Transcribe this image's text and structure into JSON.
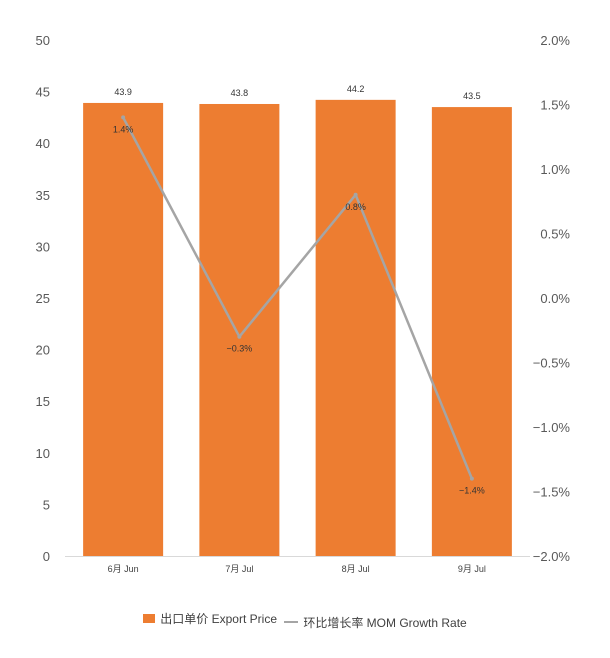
{
  "chart_data": {
    "type": "bar",
    "categories": [
      "6月 Jun",
      "7月 Jul",
      "8月 Jul",
      "9月 Jul"
    ],
    "series": [
      {
        "name": "出口单价 Export Price",
        "type": "bar",
        "axis": "left",
        "values": [
          43.9,
          43.8,
          44.2,
          43.5
        ],
        "labels": [
          "43.9",
          "43.8",
          "44.2",
          "43.5"
        ],
        "color": "#ED7D31"
      },
      {
        "name": "环比增长率 MOM Growth Rate",
        "type": "line",
        "axis": "right",
        "values": [
          1.4,
          -0.3,
          0.8,
          -1.4
        ],
        "labels": [
          "1.4%",
          "−0.3%",
          "0.8%",
          "−1.4%"
        ],
        "color": "#A5A5A5"
      }
    ],
    "y_left": {
      "range": [
        0,
        50
      ],
      "ticks": [
        "0",
        "5",
        "10",
        "15",
        "20",
        "25",
        "30",
        "35",
        "40",
        "45",
        "50"
      ]
    },
    "y_right": {
      "range": [
        -2.0,
        2.0
      ],
      "ticks": [
        "−2.0%",
        "−1.5%",
        "−1.0%",
        "−0.5%",
        "0.0%",
        "0.5%",
        "1.0%",
        "1.5%",
        "2.0%"
      ]
    },
    "grid": false,
    "legend": "bottom-center",
    "title": "",
    "xlabel": "",
    "ylabel": ""
  }
}
